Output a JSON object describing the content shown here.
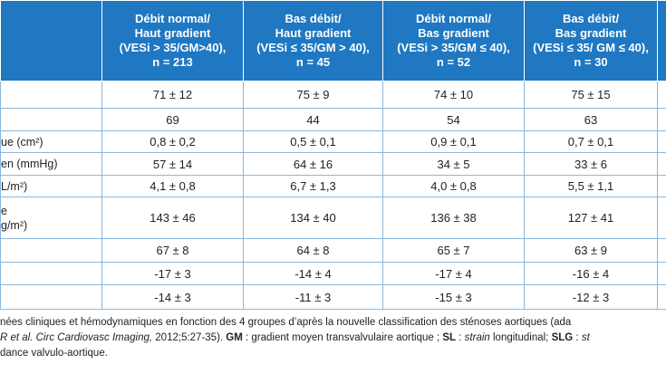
{
  "table": {
    "headers": [
      [
        "Débit normal/",
        "Haut gradient",
        "(VESi > 35/GM>40),",
        "n = 213"
      ],
      [
        "Bas débit/",
        "Haut gradient",
        "(VESi ≤ 35/GM > 40),",
        "n = 45"
      ],
      [
        "Débit normal/",
        "Bas gradient",
        "(VESi > 35/GM ≤ 40),",
        "n = 52"
      ],
      [
        "Bas débit/",
        "Bas gradient",
        "(VESi ≤ 35/ GM ≤ 40),",
        "n = 30"
      ]
    ],
    "rows": [
      {
        "values": [
          "71 ± 12",
          "75 ± 9",
          "74 ± 10",
          "75 ± 15"
        ]
      },
      {
        "values": [
          "69",
          "44",
          "54",
          "63"
        ]
      },
      {
        "label": [
          "ue (cm²)"
        ],
        "values": [
          "0,8 ± 0,2",
          "0,5 ± 0,1",
          "0,9 ± 0,1",
          "0,7 ± 0,1"
        ]
      },
      {
        "label": [
          "en (mmHg)"
        ],
        "values": [
          "57 ± 14",
          "64 ± 16",
          "34 ± 5",
          "33 ± 6"
        ]
      },
      {
        "label": [
          "L/m²)"
        ],
        "values": [
          "4,1 ± 0,8",
          "6,7 ± 1,3",
          "4,0 ± 0,8",
          "5,5 ± 1,1"
        ]
      },
      {
        "label": [
          "e",
          "g/m²)"
        ],
        "values": [
          "143 ± 46",
          "134 ± 40",
          "136 ± 38",
          "127 ± 41"
        ]
      },
      {
        "values": [
          "67 ± 8",
          "64 ± 8",
          "65 ± 7",
          "63 ± 9"
        ]
      },
      {
        "values": [
          "-17 ± 3",
          "-14 ± 4",
          "-17 ± 4",
          "-16 ± 4"
        ]
      },
      {
        "values": [
          "-14 ± 3",
          "-11 ± 3",
          "-15 ± 3",
          "-12 ± 3"
        ]
      }
    ]
  },
  "caption": {
    "line1": "nées cliniques et hémodynamiques en fonction des 4 groupes d’après la nouvelle classification des sténoses aortiques (ada",
    "line2": [
      "R et al. Circ Cardiovasc Imaging,",
      " 2012;5:27-35). ",
      "GM",
      " : gradient moyen transvalvulaire aortique ; ",
      "SL",
      " : ",
      "strain",
      " longitudinal; ",
      "SLG",
      " : ",
      "st"
    ],
    "line3": "dance valvulo-aortique."
  }
}
